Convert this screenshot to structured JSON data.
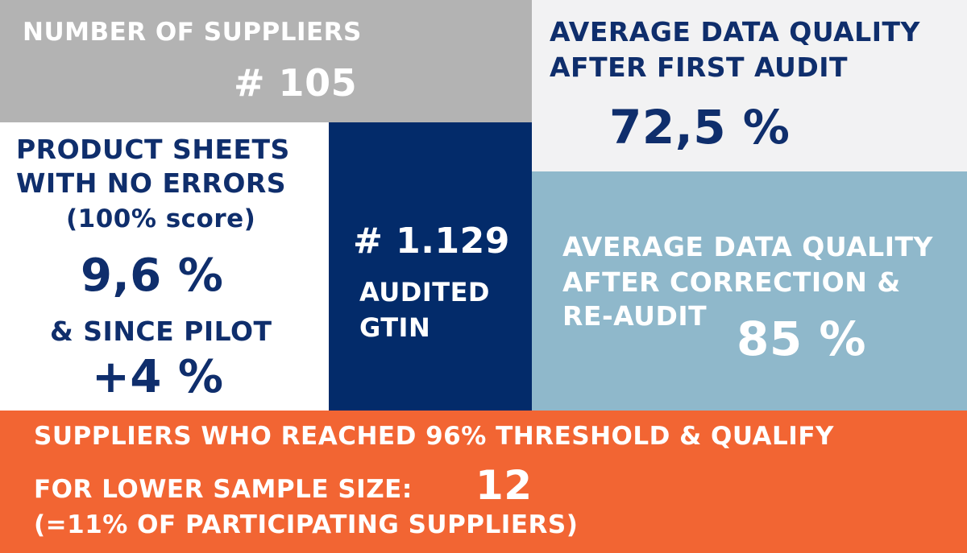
{
  "colors": {
    "gray": "#b3b3b3",
    "light": "#f2f2f3",
    "navy": "#032b6a",
    "blue": "#8fb8cb",
    "orange": "#f26533",
    "white": "#ffffff"
  },
  "suppliers": {
    "label": "NUMBER OF SUPPLIERS",
    "value": "# 105"
  },
  "quality_first": {
    "line1": "AVERAGE DATA QUALITY",
    "line2": "AFTER FIRST AUDIT",
    "value": "72,5 %"
  },
  "sheets": {
    "line1": "PRODUCT SHEETS",
    "line2": "WITH NO ERRORS",
    "line3": "(100% score)",
    "value": "9,6 %",
    "since_label": "& SINCE PILOT",
    "since_value": "+4 %"
  },
  "gtin": {
    "value": "# 1.129",
    "line1": "AUDITED",
    "line2": "GTIN"
  },
  "quality_corr": {
    "line1": "AVERAGE DATA QUALITY",
    "line2": "AFTER CORRECTION &",
    "line3": "RE-AUDIT",
    "value": "85 %"
  },
  "threshold": {
    "line1": "SUPPLIERS WHO REACHED 96% THRESHOLD & QUALIFY",
    "line2": "FOR  LOWER SAMPLE SIZE:",
    "value": "12",
    "line3": "(=11% OF PARTICIPATING SUPPLIERS)"
  }
}
